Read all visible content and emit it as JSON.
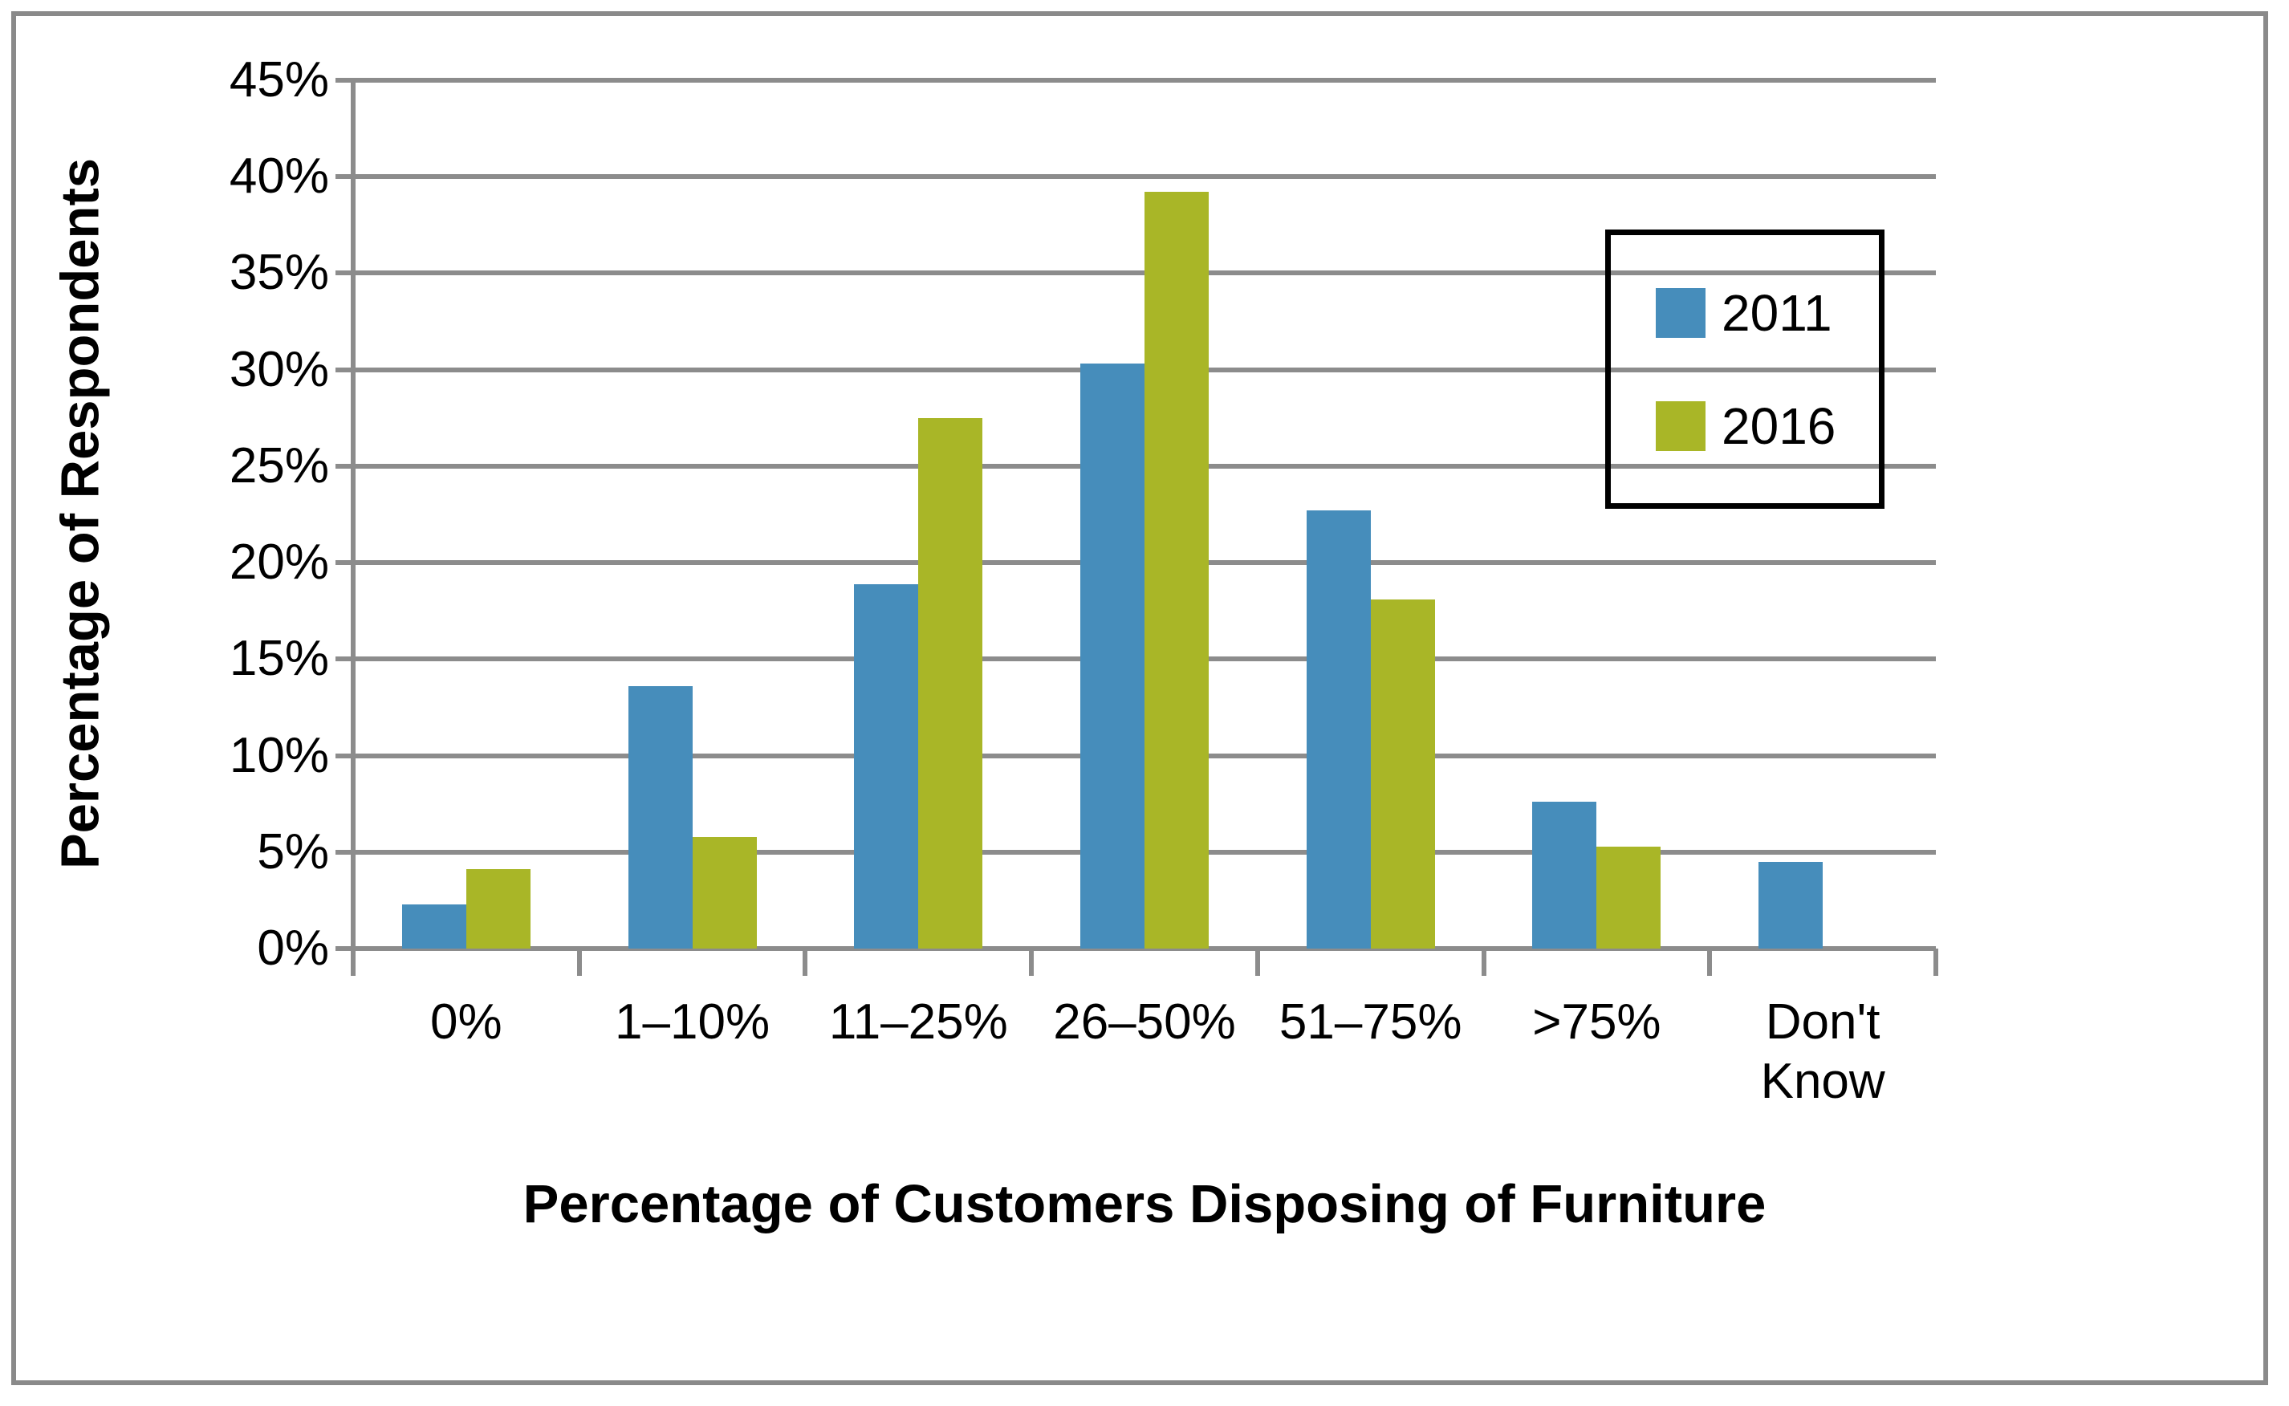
{
  "chart_data": {
    "type": "bar",
    "title": "",
    "xlabel": "Percentage of Customers Disposing of Furniture",
    "ylabel": "Percentage of Respondents",
    "categories": [
      "0%",
      "1–10%",
      "11–25%",
      "26–50%",
      "51–75%",
      ">75%",
      "Don't Know"
    ],
    "series": [
      {
        "name": "2011",
        "color": "#468dbb",
        "values": [
          2.3,
          13.6,
          18.9,
          30.3,
          22.7,
          7.6,
          4.5
        ]
      },
      {
        "name": "2016",
        "color": "#a9b627",
        "values": [
          4.1,
          5.8,
          27.5,
          39.2,
          18.1,
          5.3,
          0
        ]
      }
    ],
    "ylim": [
      0,
      45
    ],
    "ytick_step": 5,
    "ytick_labels": [
      "0%",
      "5%",
      "10%",
      "15%",
      "20%",
      "25%",
      "30%",
      "35%",
      "40%",
      "45%"
    ],
    "grid": true,
    "legend_position": "top-right",
    "colors": {
      "gridline": "#8c8c8c",
      "axis": "#8c8c8c",
      "outer_border": "#8a8a8a",
      "legend_border": "#000000",
      "background": "#ffffff"
    }
  },
  "legend": {
    "items": [
      {
        "label": "2011"
      },
      {
        "label": "2016"
      }
    ]
  }
}
